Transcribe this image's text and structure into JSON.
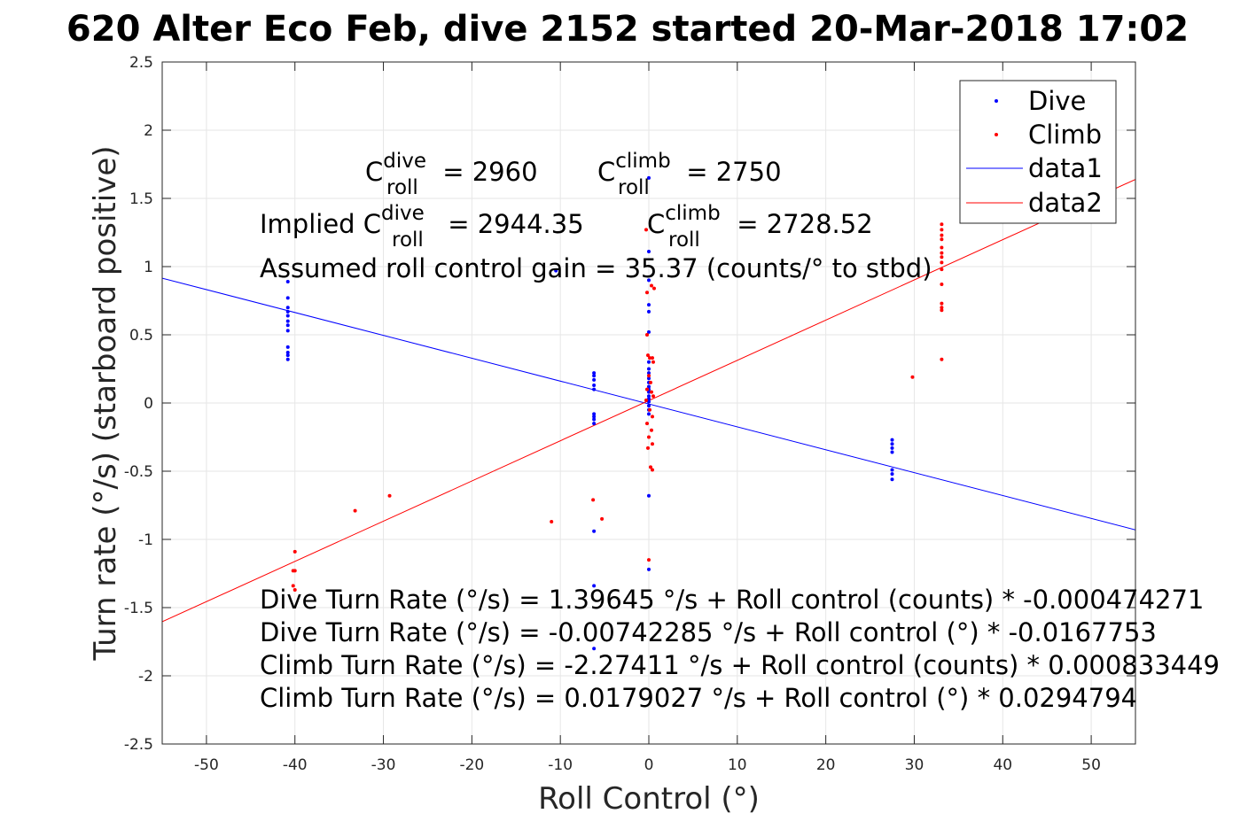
{
  "chart_data": {
    "type": "scatter",
    "title": "620 Alter Eco Feb, dive 2152 started 20-Mar-2018 17:02",
    "xlabel": "Roll Control (°)",
    "ylabel": "Turn rate (°/s) (starboard positive)",
    "xlim": [
      -55,
      55
    ],
    "ylim": [
      -2.5,
      2.5
    ],
    "grid": true,
    "legend_position": "top-right",
    "x_ticks": [
      "-50",
      "-40",
      "-30",
      "-20",
      "-10",
      "0",
      "10",
      "20",
      "30",
      "40",
      "50"
    ],
    "y_ticks": [
      "-2.5",
      "-2",
      "-1.5",
      "-1",
      "-0.5",
      "0",
      "0.5",
      "1",
      "1.5",
      "2",
      "2.5"
    ],
    "series": [
      {
        "name": "Dive",
        "kind": "points",
        "color": "#0000ff",
        "points": [
          [
            -40.8,
            0.89
          ],
          [
            -40.8,
            0.77
          ],
          [
            -40.8,
            0.7
          ],
          [
            -40.8,
            0.67
          ],
          [
            -40.8,
            0.64
          ],
          [
            -40.8,
            0.6
          ],
          [
            -40.8,
            0.57
          ],
          [
            -40.8,
            0.53
          ],
          [
            -40.8,
            0.41
          ],
          [
            -40.8,
            0.37
          ],
          [
            -40.8,
            0.35
          ],
          [
            -40.8,
            0.32
          ],
          [
            -6.2,
            0.22
          ],
          [
            -6.2,
            0.2
          ],
          [
            -6.2,
            0.17
          ],
          [
            -6.2,
            0.13
          ],
          [
            -6.2,
            0.1
          ],
          [
            -6.2,
            -0.08
          ],
          [
            -6.2,
            -0.1
          ],
          [
            -6.2,
            -0.12
          ],
          [
            -6.2,
            -0.15
          ],
          [
            -6.2,
            -0.94
          ],
          [
            -6.2,
            -1.34
          ],
          [
            -6.2,
            -1.8
          ],
          [
            -10.5,
            0.97
          ],
          [
            0,
            1.65
          ],
          [
            0,
            1.11
          ],
          [
            0,
            0.9
          ],
          [
            0,
            0.72
          ],
          [
            0,
            0.67
          ],
          [
            0,
            0.52
          ],
          [
            0,
            0.3
          ],
          [
            0,
            0.25
          ],
          [
            0,
            0.22
          ],
          [
            0,
            0.18
          ],
          [
            0,
            0.15
          ],
          [
            0,
            0.12
          ],
          [
            0,
            0.1
          ],
          [
            0,
            0.08
          ],
          [
            0,
            0.05
          ],
          [
            0,
            0.03
          ],
          [
            0,
            0.01
          ],
          [
            0,
            -0.02
          ],
          [
            0,
            -0.05
          ],
          [
            0,
            -0.08
          ],
          [
            0,
            -0.68
          ],
          [
            0,
            -1.22
          ],
          [
            27.5,
            -0.27
          ],
          [
            27.5,
            -0.3
          ],
          [
            27.5,
            -0.33
          ],
          [
            27.5,
            -0.36
          ],
          [
            27.5,
            -0.49
          ],
          [
            27.5,
            -0.52
          ],
          [
            27.5,
            -0.56
          ]
        ]
      },
      {
        "name": "Climb",
        "kind": "points",
        "color": "#ff0000",
        "points": [
          [
            -40,
            -1.09
          ],
          [
            -40.2,
            -1.23
          ],
          [
            -40,
            -1.23
          ],
          [
            -40.2,
            -1.34
          ],
          [
            -40,
            -1.37
          ],
          [
            -33.2,
            -0.79
          ],
          [
            -29.3,
            -0.68
          ],
          [
            -11,
            -0.87
          ],
          [
            -6.3,
            -0.71
          ],
          [
            -5.3,
            -0.85
          ],
          [
            -0.3,
            1.27
          ],
          [
            -0.2,
            0.81
          ],
          [
            0.3,
            0.86
          ],
          [
            0.6,
            0.84
          ],
          [
            -0.2,
            0.5
          ],
          [
            -0.1,
            0.35
          ],
          [
            0.1,
            0.33
          ],
          [
            0.4,
            0.33
          ],
          [
            0.5,
            0.3
          ],
          [
            0,
            0.2
          ],
          [
            0.2,
            0.15
          ],
          [
            -0.2,
            0.1
          ],
          [
            0.3,
            0.08
          ],
          [
            0.5,
            0.05
          ],
          [
            -0.3,
            0.02
          ],
          [
            0.1,
            -0.05
          ],
          [
            0.4,
            -0.1
          ],
          [
            -0.2,
            -0.15
          ],
          [
            0.3,
            -0.2
          ],
          [
            0,
            -0.25
          ],
          [
            0.4,
            -0.3
          ],
          [
            -0.1,
            -0.33
          ],
          [
            0.2,
            -0.47
          ],
          [
            0.4,
            -0.49
          ],
          [
            0,
            -1.15
          ],
          [
            29.8,
            0.19
          ],
          [
            33.1,
            1.31
          ],
          [
            33.1,
            1.27
          ],
          [
            33.1,
            1.23
          ],
          [
            33.1,
            1.2
          ],
          [
            33.1,
            1.14
          ],
          [
            33.1,
            1.1
          ],
          [
            33.1,
            1.07
          ],
          [
            33.1,
            1.03
          ],
          [
            33.1,
            0.98
          ],
          [
            33.1,
            0.87
          ],
          [
            33.1,
            0.73
          ],
          [
            33.1,
            0.7
          ],
          [
            33.1,
            0.68
          ],
          [
            33.1,
            0.32
          ]
        ]
      },
      {
        "name": "data1",
        "kind": "line",
        "color": "#0000ff",
        "intercept": -0.00742285,
        "slope": -0.0167753
      },
      {
        "name": "data2",
        "kind": "line",
        "color": "#ff0000",
        "intercept": 0.0179027,
        "slope": 0.0294794
      }
    ],
    "annotations": {
      "c_dive_base": "C",
      "c_dive_sup": "dive",
      "c_dive_sub": "roll",
      "c_dive_value": " = 2960",
      "c_climb_base": "C",
      "c_climb_sup": "climb",
      "c_climb_sub": "roll",
      "c_climb_value": " = 2750",
      "implied_prefix": "Implied C",
      "implied_dive_sup": "dive",
      "implied_dive_sub": "roll",
      "implied_dive_value": " = 2944.35",
      "implied_climb_base": "C",
      "implied_climb_sup": "climb",
      "implied_climb_sub": "roll",
      "implied_climb_value": " = 2728.52",
      "gain": "Assumed roll control gain = 35.37 (counts/° to stbd)",
      "eq1": "Dive Turn Rate (°/s) = 1.39645 °/s + Roll control (counts) * -0.000474271",
      "eq2": "Dive Turn Rate (°/s) = -0.00742285 °/s + Roll control (°) * -0.0167753",
      "eq3": "Climb Turn Rate (°/s) = -2.27411 °/s + Roll control (counts) * 0.000833449",
      "eq4": "Climb Turn Rate (°/s) = 0.0179027 °/s + Roll control (°) * 0.0294794"
    }
  }
}
